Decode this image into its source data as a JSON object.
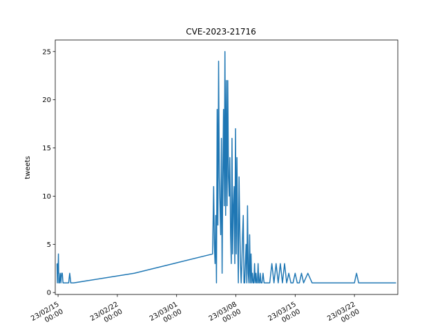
{
  "chart_data": {
    "type": "line",
    "title": "CVE-2023-21716",
    "xlabel": "",
    "ylabel": "tweets",
    "x_axis": "date",
    "x_ticks": [
      {
        "date": "2023-02-15",
        "label": [
          "23/02/15",
          "00:00"
        ]
      },
      {
        "date": "2023-02-22",
        "label": [
          "23/02/22",
          "00:00"
        ]
      },
      {
        "date": "2023-03-01",
        "label": [
          "23/03/01",
          "00:00"
        ]
      },
      {
        "date": "2023-03-08",
        "label": [
          "23/03/08",
          "00:00"
        ]
      },
      {
        "date": "2023-03-15",
        "label": [
          "23/03/15",
          "00:00"
        ]
      },
      {
        "date": "2023-03-22",
        "label": [
          "23/03/22",
          "00:00"
        ]
      }
    ],
    "y_ticks": [
      0,
      5,
      10,
      15,
      20,
      25
    ],
    "xlim": [
      "2023-02-14 16:00",
      "2023-03-27 03:00"
    ],
    "ylim": [
      -0.2,
      26.2
    ],
    "grid": false,
    "color": "#1f77b4",
    "series": [
      {
        "x": [
          "2023-02-14 21:00",
          "2023-02-14 22:00",
          "2023-02-14 23:00",
          "2023-02-15 00:00",
          "2023-02-15 01:00",
          "2023-02-15 02:00",
          "2023-02-15 04:00",
          "2023-02-15 06:00",
          "2023-02-15 08:00",
          "2023-02-15 10:00",
          "2023-02-15 12:00",
          "2023-02-15 14:00",
          "2023-02-15 16:00",
          "2023-02-15 18:00",
          "2023-02-16 06:00",
          "2023-02-16 09:00",
          "2023-02-16 12:00",
          "2023-02-16 20:00",
          "2023-02-24 00:00",
          "2023-03-05 06:00",
          "2023-03-05 09:00",
          "2023-03-05 11:00",
          "2023-03-05 13:00",
          "2023-03-05 15:00",
          "2023-03-05 17:00",
          "2023-03-05 19:00",
          "2023-03-05 21:00",
          "2023-03-05 23:00",
          "2023-03-06 01:00",
          "2023-03-06 03:00",
          "2023-03-06 05:00",
          "2023-03-06 07:00",
          "2023-03-06 09:00",
          "2023-03-06 11:00",
          "2023-03-06 13:00",
          "2023-03-06 15:00",
          "2023-03-06 17:00",
          "2023-03-06 19:00",
          "2023-03-06 21:00",
          "2023-03-06 23:00",
          "2023-03-07 01:00",
          "2023-03-07 03:00",
          "2023-03-07 05:00",
          "2023-03-07 07:00",
          "2023-03-07 09:00",
          "2023-03-07 11:00",
          "2023-03-07 13:00",
          "2023-03-07 15:00",
          "2023-03-07 17:00",
          "2023-03-07 19:00",
          "2023-03-07 21:00",
          "2023-03-07 23:00",
          "2023-03-08 01:00",
          "2023-03-08 03:00",
          "2023-03-08 05:00",
          "2023-03-08 07:00",
          "2023-03-08 09:00",
          "2023-03-08 11:00",
          "2023-03-08 13:00",
          "2023-03-08 15:00",
          "2023-03-08 17:00",
          "2023-03-08 19:00",
          "2023-03-08 21:00",
          "2023-03-08 23:00",
          "2023-03-09 01:00",
          "2023-03-09 03:00",
          "2023-03-09 05:00",
          "2023-03-09 07:00",
          "2023-03-09 09:00",
          "2023-03-09 11:00",
          "2023-03-09 13:00",
          "2023-03-09 15:00",
          "2023-03-09 17:00",
          "2023-03-09 19:00",
          "2023-03-09 21:00",
          "2023-03-09 23:00",
          "2023-03-10 01:00",
          "2023-03-10 03:00",
          "2023-03-10 05:00",
          "2023-03-10 07:00",
          "2023-03-10 09:00",
          "2023-03-10 11:00",
          "2023-03-10 13:00",
          "2023-03-10 15:00",
          "2023-03-10 17:00",
          "2023-03-10 19:00",
          "2023-03-10 21:00",
          "2023-03-10 23:00",
          "2023-03-11 02:00",
          "2023-03-11 05:00",
          "2023-03-11 08:00",
          "2023-03-11 11:00",
          "2023-03-11 14:00",
          "2023-03-11 17:00",
          "2023-03-11 20:00",
          "2023-03-12 00:00",
          "2023-03-12 06:00",
          "2023-03-12 12:00",
          "2023-03-12 18:00",
          "2023-03-13 00:00",
          "2023-03-13 06:00",
          "2023-03-13 12:00",
          "2023-03-13 18:00",
          "2023-03-14 00:00",
          "2023-03-14 06:00",
          "2023-03-14 12:00",
          "2023-03-14 18:00",
          "2023-03-15 00:00",
          "2023-03-15 06:00",
          "2023-03-15 12:00",
          "2023-03-15 18:00",
          "2023-03-16 00:00",
          "2023-03-16 12:00",
          "2023-03-17 00:00",
          "2023-03-17 06:00",
          "2023-03-17 12:00",
          "2023-03-22 00:00",
          "2023-03-22 06:00",
          "2023-03-22 12:00",
          "2023-03-25 00:00",
          "2023-03-26 00:00",
          "2023-03-26 22:00"
        ],
        "y": [
          3,
          1,
          3,
          2,
          4,
          1,
          1,
          2,
          1,
          2,
          2,
          1,
          1,
          1,
          1,
          2,
          1,
          1,
          2,
          4,
          11,
          5,
          3,
          8,
          1,
          19,
          7,
          24,
          12,
          9,
          6,
          16,
          2,
          12,
          19,
          9,
          25,
          8,
          22,
          9,
          22,
          12,
          10,
          14,
          6,
          3,
          16,
          4,
          9,
          11,
          3,
          17,
          4,
          14,
          6,
          1,
          12,
          7,
          3,
          1,
          3,
          6,
          8,
          1,
          1,
          3,
          5,
          1,
          9,
          2,
          1,
          6,
          1,
          4,
          1,
          2,
          1,
          1,
          3,
          1,
          2,
          1,
          1,
          3,
          1,
          1,
          2,
          1,
          1,
          2,
          1,
          1,
          1,
          1,
          1,
          1,
          3,
          1,
          3,
          1,
          3,
          1,
          3,
          1,
          2,
          1,
          1,
          2,
          1,
          1,
          2,
          1,
          2,
          1,
          1,
          1,
          1,
          2,
          1,
          1,
          1,
          1
        ]
      }
    ]
  }
}
